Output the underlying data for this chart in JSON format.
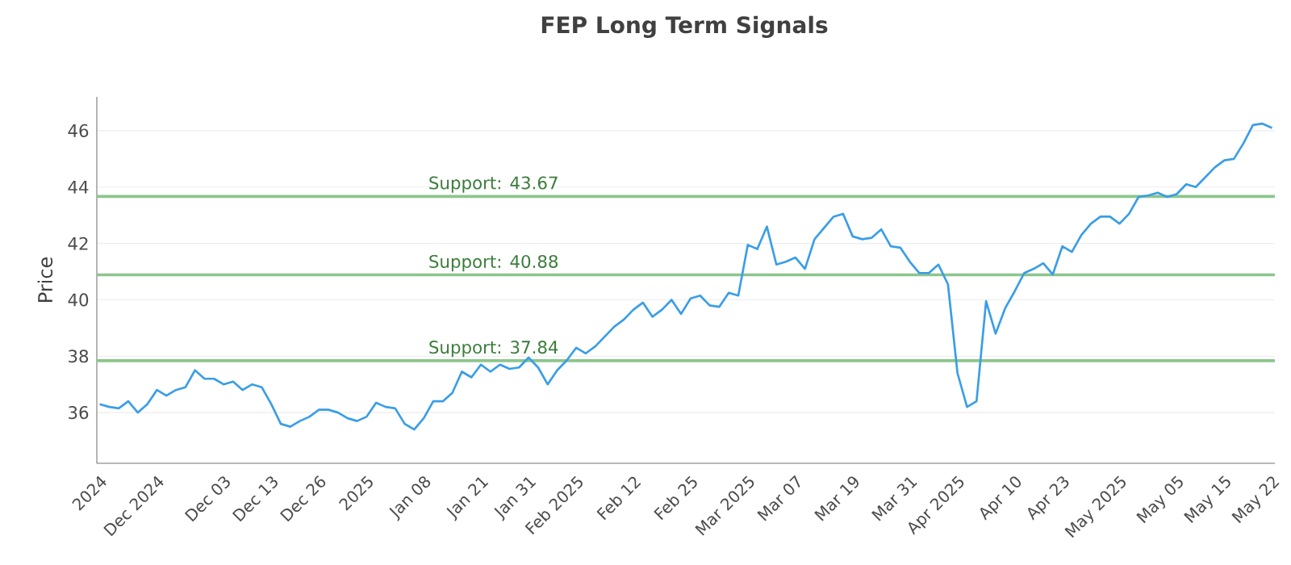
{
  "chart_data": {
    "type": "line",
    "title": "FEP Long Term Signals",
    "ylabel": "Price",
    "categories": [
      "2024",
      null,
      null,
      null,
      null,
      null,
      "Dec 2024",
      null,
      null,
      null,
      null,
      null,
      null,
      "Dec 03",
      null,
      null,
      null,
      null,
      "Dec 13",
      null,
      null,
      null,
      null,
      "Dec 26",
      null,
      null,
      null,
      null,
      "2025",
      null,
      null,
      null,
      null,
      null,
      "Jan 08",
      null,
      null,
      null,
      null,
      null,
      "Jan 21",
      null,
      null,
      null,
      null,
      "Jan 31",
      null,
      null,
      null,
      null,
      "Feb 2025",
      null,
      null,
      null,
      null,
      null,
      "Feb 12",
      null,
      null,
      null,
      null,
      null,
      "Feb 25",
      null,
      null,
      null,
      null,
      null,
      "Mar 2025",
      null,
      null,
      null,
      null,
      "Mar 07",
      null,
      null,
      null,
      null,
      null,
      "Mar 19",
      null,
      null,
      null,
      null,
      null,
      "Mar 31",
      null,
      null,
      null,
      null,
      "Apr 2025",
      null,
      null,
      null,
      null,
      null,
      "Apr 10",
      null,
      null,
      null,
      null,
      "Apr 23",
      null,
      null,
      null,
      null,
      null,
      "May 2025",
      null,
      null,
      null,
      null,
      null,
      "May 05",
      null,
      null,
      null,
      null,
      "May 15",
      null,
      null,
      null,
      null,
      "May 22"
    ],
    "series": [
      {
        "color": "#3a9ee6",
        "values": [
          36.3,
          36.2,
          36.15,
          36.4,
          36.0,
          36.3,
          36.8,
          36.6,
          36.8,
          36.9,
          37.5,
          37.2,
          37.2,
          37.0,
          37.1,
          36.8,
          37.0,
          36.9,
          36.3,
          35.6,
          35.5,
          35.7,
          35.85,
          36.1,
          36.1,
          36.0,
          35.8,
          35.7,
          35.85,
          36.35,
          36.2,
          36.15,
          35.6,
          35.4,
          35.8,
          36.4,
          36.4,
          36.7,
          37.45,
          37.25,
          37.7,
          37.45,
          37.7,
          37.55,
          37.6,
          37.95,
          37.6,
          37.0,
          37.5,
          37.85,
          38.3,
          38.1,
          38.35,
          38.7,
          39.05,
          39.3,
          39.65,
          39.9,
          39.4,
          39.65,
          40.0,
          39.5,
          40.05,
          40.15,
          39.8,
          39.75,
          40.25,
          40.15,
          41.95,
          41.8,
          42.6,
          41.25,
          41.35,
          41.5,
          41.1,
          42.15,
          42.55,
          42.95,
          43.05,
          42.25,
          42.15,
          42.2,
          42.5,
          41.9,
          41.85,
          41.35,
          40.95,
          40.95,
          41.25,
          40.55,
          37.4,
          36.2,
          36.4,
          39.95,
          38.8,
          39.7,
          40.3,
          40.95,
          41.1,
          41.3,
          40.9,
          41.9,
          41.7,
          42.3,
          42.7,
          42.95,
          42.95,
          42.7,
          43.05,
          43.65,
          43.7,
          43.8,
          43.65,
          43.75,
          44.1,
          44.0,
          44.35,
          44.7,
          44.95,
          45.0,
          45.55,
          46.2,
          46.25,
          46.1
        ]
      }
    ],
    "ylim": [
      34.2,
      47.2
    ],
    "yticks": [
      36,
      38,
      40,
      42,
      44,
      46
    ],
    "grid": "y",
    "marker": "none",
    "line_style": "solid",
    "ref_lines": [
      {
        "axis": "y",
        "value": 43.67,
        "label": "Support: 43.67",
        "color": "#8cc68c"
      },
      {
        "axis": "y",
        "value": 40.88,
        "label": "Support: 40.88",
        "color": "#8cc68c"
      },
      {
        "axis": "y",
        "value": 37.84,
        "label": "Support: 37.84",
        "color": "#8cc68c"
      }
    ]
  }
}
